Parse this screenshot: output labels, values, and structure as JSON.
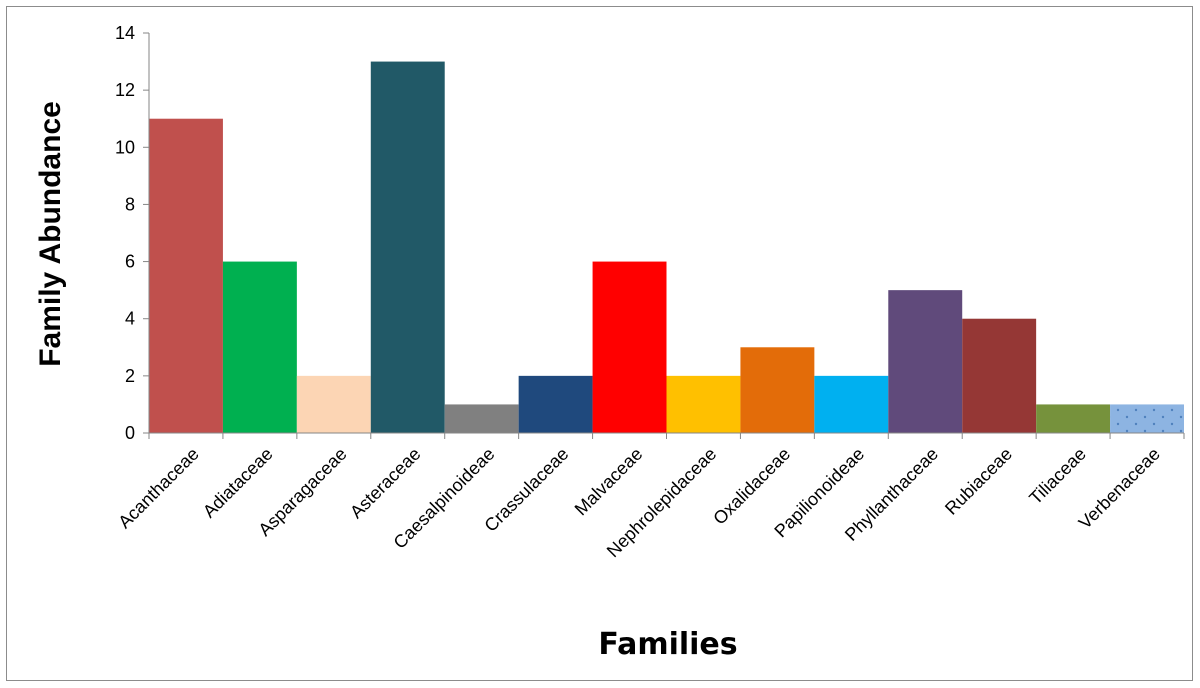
{
  "chart_data": {
    "type": "bar",
    "title": "",
    "xlabel": "Families",
    "ylabel": "Family Abundance",
    "ylim": [
      0,
      14
    ],
    "yticks": [
      0,
      2,
      4,
      6,
      8,
      10,
      12,
      14
    ],
    "grid": false,
    "legend": "none",
    "categories": [
      "Acanthaceae",
      "Adiataceae",
      "Asparagaceae",
      "Asteraceae",
      "Caesalpinoideae",
      "Crassulaceae",
      "Malvaceae",
      "Nephrolepidaceae",
      "Oxalidaceae",
      "Papilionoideae",
      "Phyllanthaceae",
      "Rubiaceae",
      "Tiliaceae",
      "Verbenaceae"
    ],
    "values": [
      11,
      6,
      2,
      13,
      1,
      2,
      6,
      2,
      3,
      2,
      5,
      4,
      1,
      1
    ],
    "colors": [
      "#C0504D",
      "#00B050",
      "#FCD5B4",
      "#215967",
      "#808080",
      "#1F497D",
      "#FF0000",
      "#FFC000",
      "#E36C09",
      "#00B0F0",
      "#604A7B",
      "#953735",
      "#76923C",
      "#8DB4E2"
    ],
    "patterns": [
      "",
      "",
      "",
      "",
      "",
      "",
      "",
      "",
      "",
      "",
      "",
      "",
      "",
      "dotted"
    ]
  }
}
